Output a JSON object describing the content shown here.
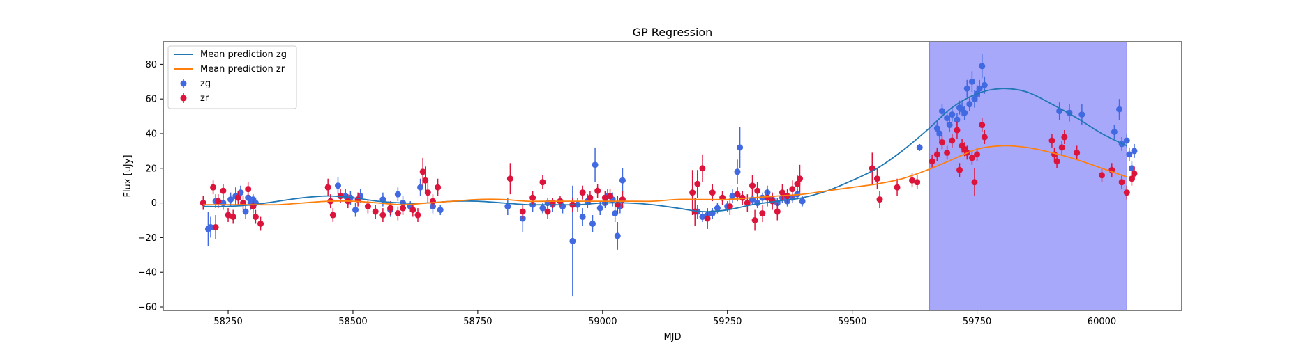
{
  "chart_data": {
    "type": "scatter",
    "title": "GP Regression",
    "xlabel": "MJD",
    "ylabel": "Flux [uJy]",
    "xlim": [
      58120,
      60160
    ],
    "ylim": [
      -62,
      93
    ],
    "x_ticks": [
      58250,
      58500,
      58750,
      59000,
      59250,
      59500,
      59750,
      60000
    ],
    "y_ticks": [
      -60,
      -40,
      -20,
      0,
      20,
      40,
      60,
      80
    ],
    "grid": false,
    "legend_position": "upper-left",
    "shaded_region": {
      "x_start": 59655,
      "x_end": 60050,
      "color": "#a8a8fb"
    },
    "series": [
      {
        "name": "Mean prediction zg",
        "kind": "line",
        "color": "#1f77b4",
        "x": [
          58200,
          58250,
          58300,
          58350,
          58400,
          58450,
          58500,
          58550,
          58600,
          58650,
          58700,
          58750,
          58800,
          58850,
          58900,
          58950,
          59000,
          59050,
          59100,
          59150,
          59200,
          59250,
          59300,
          59350,
          59400,
          59450,
          59500,
          59550,
          59600,
          59650,
          59700,
          59750,
          59800,
          59850,
          59900,
          59950,
          60000,
          60050
        ],
        "y": [
          -2,
          -2,
          -1,
          1,
          3,
          4,
          3,
          1,
          0,
          0,
          1,
          1,
          0,
          -1,
          -1,
          -1,
          0,
          0,
          -1,
          -3,
          -5,
          -4,
          -1,
          1,
          3,
          7,
          13,
          20,
          30,
          42,
          55,
          63,
          66,
          64,
          57,
          49,
          40,
          33
        ]
      },
      {
        "name": "Mean prediction zr",
        "kind": "line",
        "color": "#ff7f0e",
        "x": [
          58200,
          58250,
          58300,
          58350,
          58400,
          58450,
          58500,
          58550,
          58600,
          58650,
          58700,
          58750,
          58800,
          58850,
          58900,
          58950,
          59000,
          59050,
          59100,
          59150,
          59200,
          59250,
          59300,
          59350,
          59400,
          59450,
          59500,
          59550,
          59600,
          59650,
          59700,
          59750,
          59800,
          59850,
          59900,
          59950,
          60000,
          60050
        ],
        "y": [
          -1,
          -1,
          -1,
          -1,
          0,
          1,
          1,
          0,
          -1,
          0,
          1,
          2,
          2,
          1,
          1,
          1,
          1,
          1,
          1,
          2,
          2,
          2,
          3,
          4,
          5,
          7,
          9,
          11,
          14,
          19,
          25,
          31,
          33,
          32,
          29,
          25,
          20,
          15
        ]
      },
      {
        "name": "zg",
        "kind": "errorbar",
        "color": "#4169e1",
        "points": [
          [
            58210,
            -15,
            10
          ],
          [
            58215,
            -14,
            6
          ],
          [
            58225,
            1,
            4
          ],
          [
            58240,
            0,
            4
          ],
          [
            58255,
            2,
            4
          ],
          [
            58265,
            4,
            5
          ],
          [
            58275,
            6,
            4
          ],
          [
            58285,
            -5,
            4
          ],
          [
            58290,
            3,
            4
          ],
          [
            58295,
            0,
            4
          ],
          [
            58300,
            2,
            3
          ],
          [
            58305,
            0,
            3
          ],
          [
            58470,
            10,
            5
          ],
          [
            58485,
            4,
            4
          ],
          [
            58495,
            3,
            4
          ],
          [
            58505,
            -4,
            4
          ],
          [
            58515,
            4,
            4
          ],
          [
            58560,
            2,
            4
          ],
          [
            58575,
            -4,
            4
          ],
          [
            58590,
            5,
            4
          ],
          [
            58600,
            0,
            4
          ],
          [
            58615,
            -2,
            3
          ],
          [
            58635,
            9,
            5
          ],
          [
            58660,
            -2,
            4
          ],
          [
            58675,
            -4,
            3
          ],
          [
            58810,
            -2,
            5
          ],
          [
            58840,
            -9,
            8
          ],
          [
            58860,
            -1,
            4
          ],
          [
            58880,
            -3,
            3
          ],
          [
            58890,
            0,
            3
          ],
          [
            58900,
            -1,
            4
          ],
          [
            58920,
            -2,
            4
          ],
          [
            58940,
            -22,
            32
          ],
          [
            58950,
            -1,
            4
          ],
          [
            58960,
            -8,
            5
          ],
          [
            58970,
            1,
            4
          ],
          [
            58980,
            -12,
            5
          ],
          [
            58985,
            22,
            10
          ],
          [
            58995,
            -3,
            4
          ],
          [
            59005,
            0,
            3
          ],
          [
            59010,
            4,
            4
          ],
          [
            59020,
            2,
            4
          ],
          [
            59025,
            -6,
            5
          ],
          [
            59030,
            -19,
            8
          ],
          [
            59035,
            -2,
            4
          ],
          [
            59040,
            13,
            7
          ],
          [
            59190,
            -5,
            4
          ],
          [
            59200,
            -8,
            3
          ],
          [
            59210,
            -7,
            3
          ],
          [
            59220,
            -6,
            3
          ],
          [
            59230,
            -3,
            3
          ],
          [
            59250,
            -2,
            3
          ],
          [
            59260,
            4,
            4
          ],
          [
            59270,
            18,
            7
          ],
          [
            59275,
            32,
            12
          ],
          [
            59300,
            2,
            3
          ],
          [
            59310,
            0,
            3
          ],
          [
            59320,
            3,
            3
          ],
          [
            59330,
            6,
            4
          ],
          [
            59340,
            2,
            3
          ],
          [
            59350,
            0,
            3
          ],
          [
            59360,
            3,
            3
          ],
          [
            59370,
            1,
            3
          ],
          [
            59380,
            3,
            3
          ],
          [
            59390,
            5,
            3
          ],
          [
            59400,
            1,
            3
          ],
          [
            59635,
            32,
            2
          ],
          [
            59670,
            43,
            4
          ],
          [
            59675,
            40,
            4
          ],
          [
            59680,
            53,
            4
          ],
          [
            59690,
            49,
            4
          ],
          [
            59695,
            45,
            4
          ],
          [
            59700,
            51,
            4
          ],
          [
            59710,
            48,
            4
          ],
          [
            59715,
            55,
            4
          ],
          [
            59720,
            54,
            4
          ],
          [
            59725,
            52,
            4
          ],
          [
            59730,
            66,
            5
          ],
          [
            59735,
            57,
            4
          ],
          [
            59740,
            70,
            6
          ],
          [
            59745,
            60,
            5
          ],
          [
            59750,
            63,
            5
          ],
          [
            59755,
            66,
            5
          ],
          [
            59760,
            79,
            7
          ],
          [
            59765,
            68,
            5
          ],
          [
            59915,
            53,
            5
          ],
          [
            59935,
            52,
            5
          ],
          [
            59960,
            51,
            6
          ],
          [
            60025,
            41,
            4
          ],
          [
            60035,
            54,
            6
          ],
          [
            60040,
            34,
            4
          ],
          [
            60050,
            36,
            4
          ],
          [
            60055,
            28,
            4
          ],
          [
            60060,
            20,
            4
          ],
          [
            60065,
            30,
            4
          ]
        ]
      },
      {
        "name": "zr",
        "kind": "errorbar",
        "color": "#dc143c",
        "points": [
          [
            58200,
            0,
            4
          ],
          [
            58220,
            9,
            4
          ],
          [
            58225,
            -14,
            7
          ],
          [
            58230,
            1,
            4
          ],
          [
            58240,
            7,
            4
          ],
          [
            58250,
            -7,
            4
          ],
          [
            58260,
            -8,
            4
          ],
          [
            58270,
            3,
            4
          ],
          [
            58280,
            0,
            4
          ],
          [
            58290,
            8,
            4
          ],
          [
            58300,
            -2,
            4
          ],
          [
            58305,
            -8,
            4
          ],
          [
            58315,
            -12,
            4
          ],
          [
            58450,
            9,
            5
          ],
          [
            58455,
            1,
            4
          ],
          [
            58460,
            -7,
            4
          ],
          [
            58475,
            4,
            4
          ],
          [
            58490,
            1,
            4
          ],
          [
            58510,
            2,
            4
          ],
          [
            58530,
            -2,
            4
          ],
          [
            58545,
            -5,
            4
          ],
          [
            58560,
            -7,
            4
          ],
          [
            58575,
            -3,
            4
          ],
          [
            58590,
            -6,
            4
          ],
          [
            58600,
            -3,
            4
          ],
          [
            58620,
            -4,
            4
          ],
          [
            58630,
            -7,
            4
          ],
          [
            58640,
            18,
            8
          ],
          [
            58645,
            13,
            8
          ],
          [
            58650,
            6,
            6
          ],
          [
            58660,
            1,
            4
          ],
          [
            58670,
            9,
            5
          ],
          [
            58815,
            14,
            9
          ],
          [
            58840,
            -5,
            4
          ],
          [
            58860,
            3,
            4
          ],
          [
            58880,
            12,
            4
          ],
          [
            58890,
            -5,
            4
          ],
          [
            58900,
            0,
            3
          ],
          [
            58915,
            1,
            3
          ],
          [
            58940,
            -1,
            4
          ],
          [
            58960,
            6,
            4
          ],
          [
            58975,
            3,
            4
          ],
          [
            58990,
            7,
            4
          ],
          [
            59005,
            3,
            4
          ],
          [
            59015,
            4,
            4
          ],
          [
            59030,
            -1,
            5
          ],
          [
            59040,
            2,
            5
          ],
          [
            59180,
            6,
            13
          ],
          [
            59185,
            -5,
            8
          ],
          [
            59190,
            11,
            8
          ],
          [
            59200,
            20,
            8
          ],
          [
            59210,
            -9,
            6
          ],
          [
            59220,
            6,
            5
          ],
          [
            59240,
            3,
            4
          ],
          [
            59255,
            -2,
            5
          ],
          [
            59270,
            5,
            4
          ],
          [
            59280,
            3,
            4
          ],
          [
            59290,
            0,
            5
          ],
          [
            59300,
            10,
            6
          ],
          [
            59305,
            -10,
            6
          ],
          [
            59310,
            7,
            5
          ],
          [
            59320,
            -6,
            5
          ],
          [
            59330,
            3,
            5
          ],
          [
            59340,
            1,
            5
          ],
          [
            59350,
            -5,
            5
          ],
          [
            59360,
            6,
            5
          ],
          [
            59370,
            4,
            4
          ],
          [
            59380,
            8,
            5
          ],
          [
            59390,
            11,
            5
          ],
          [
            59395,
            14,
            8
          ],
          [
            59540,
            20,
            9
          ],
          [
            59550,
            14,
            6
          ],
          [
            59555,
            2,
            5
          ],
          [
            59590,
            9,
            5
          ],
          [
            59620,
            13,
            4
          ],
          [
            59630,
            12,
            4
          ],
          [
            59660,
            24,
            4
          ],
          [
            59670,
            28,
            4
          ],
          [
            59680,
            35,
            4
          ],
          [
            59690,
            29,
            4
          ],
          [
            59700,
            36,
            4
          ],
          [
            59710,
            42,
            5
          ],
          [
            59715,
            19,
            4
          ],
          [
            59720,
            33,
            4
          ],
          [
            59725,
            31,
            4
          ],
          [
            59730,
            29,
            4
          ],
          [
            59740,
            26,
            4
          ],
          [
            59745,
            12,
            8
          ],
          [
            59750,
            28,
            4
          ],
          [
            59760,
            45,
            4
          ],
          [
            59765,
            38,
            4
          ],
          [
            59900,
            36,
            4
          ],
          [
            59905,
            28,
            4
          ],
          [
            59910,
            24,
            4
          ],
          [
            59920,
            32,
            4
          ],
          [
            59925,
            38,
            4
          ],
          [
            59950,
            29,
            4
          ],
          [
            60000,
            16,
            4
          ],
          [
            60020,
            19,
            4
          ],
          [
            60040,
            12,
            4
          ],
          [
            60050,
            6,
            4
          ],
          [
            60060,
            14,
            4
          ],
          [
            60065,
            17,
            4
          ]
        ]
      }
    ]
  }
}
